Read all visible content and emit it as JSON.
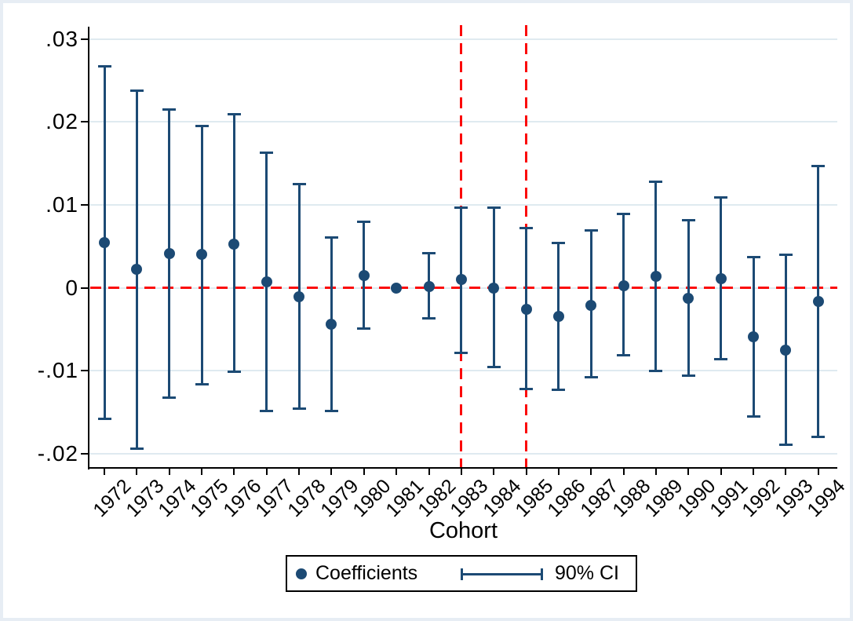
{
  "figure": {
    "xlabel": "Cohort",
    "background": "#ffffff",
    "frame_color": "#e7edf4"
  },
  "legend": {
    "position": "bottom-center",
    "items": [
      {
        "label": "Coefficients",
        "glyph": "dot"
      },
      {
        "label": "90% CI",
        "glyph": "errorbar"
      }
    ]
  },
  "chart_data": {
    "type": "scatter",
    "subtype": "coefficient-plot-with-confidence-intervals",
    "title": "",
    "xlabel": "Cohort",
    "ylabel": "",
    "grid": true,
    "legend_position": "bottom-center",
    "categories": [
      "1972",
      "1973",
      "1974",
      "1975",
      "1976",
      "1977",
      "1978",
      "1979",
      "1980",
      "1981",
      "1982",
      "1983",
      "1984",
      "1985",
      "1986",
      "1987",
      "1988",
      "1989",
      "1990",
      "1991",
      "1992",
      "1993",
      "1994"
    ],
    "y_ticks": [
      {
        "label": ".03",
        "value": 0.03
      },
      {
        "label": ".02",
        "value": 0.02
      },
      {
        "label": ".01",
        "value": 0.01
      },
      {
        "label": "0",
        "value": 0
      },
      {
        "label": "-.01",
        "value": -0.01
      },
      {
        "label": "-.02",
        "value": -0.02
      }
    ],
    "ylim": [
      -0.0217,
      0.0312
    ],
    "reference_year": "1981",
    "series": [
      {
        "name": "Coefficients",
        "type": "marker"
      },
      {
        "name": "90% CI",
        "type": "interval"
      }
    ],
    "points": [
      {
        "year": "1972",
        "coef": 0.0055,
        "lo": -0.0158,
        "hi": 0.0267,
        "has_ci": true
      },
      {
        "year": "1973",
        "coef": 0.0022,
        "lo": -0.0194,
        "hi": 0.0238,
        "has_ci": true
      },
      {
        "year": "1974",
        "coef": 0.0041,
        "lo": -0.0132,
        "hi": 0.0215,
        "has_ci": true
      },
      {
        "year": "1975",
        "coef": 0.004,
        "lo": -0.0116,
        "hi": 0.0195,
        "has_ci": true
      },
      {
        "year": "1976",
        "coef": 0.0053,
        "lo": -0.0101,
        "hi": 0.0209,
        "has_ci": true
      },
      {
        "year": "1977",
        "coef": 0.0007,
        "lo": -0.0148,
        "hi": 0.0163,
        "has_ci": true
      },
      {
        "year": "1978",
        "coef": -0.0011,
        "lo": -0.0146,
        "hi": 0.0125,
        "has_ci": true
      },
      {
        "year": "1979",
        "coef": -0.0044,
        "lo": -0.0148,
        "hi": 0.0061,
        "has_ci": true
      },
      {
        "year": "1980",
        "coef": 0.0015,
        "lo": -0.0049,
        "hi": 0.008,
        "has_ci": true
      },
      {
        "year": "1981",
        "coef": 0.0,
        "lo": 0.0,
        "hi": 0.0,
        "has_ci": false
      },
      {
        "year": "1982",
        "coef": 0.0002,
        "lo": -0.0037,
        "hi": 0.0042,
        "has_ci": true
      },
      {
        "year": "1983",
        "coef": 0.001,
        "lo": -0.0078,
        "hi": 0.0097,
        "has_ci": true
      },
      {
        "year": "1984",
        "coef": 0.0,
        "lo": -0.0095,
        "hi": 0.0097,
        "has_ci": true
      },
      {
        "year": "1985",
        "coef": -0.0026,
        "lo": -0.0122,
        "hi": 0.0072,
        "has_ci": true
      },
      {
        "year": "1986",
        "coef": -0.0034,
        "lo": -0.0123,
        "hi": 0.0054,
        "has_ci": true
      },
      {
        "year": "1987",
        "coef": -0.0021,
        "lo": -0.0108,
        "hi": 0.0069,
        "has_ci": true
      },
      {
        "year": "1988",
        "coef": 0.0003,
        "lo": -0.0081,
        "hi": 0.0089,
        "has_ci": true
      },
      {
        "year": "1989",
        "coef": 0.0014,
        "lo": -0.01,
        "hi": 0.0128,
        "has_ci": true
      },
      {
        "year": "1990",
        "coef": -0.0013,
        "lo": -0.0106,
        "hi": 0.0082,
        "has_ci": true
      },
      {
        "year": "1991",
        "coef": 0.0011,
        "lo": -0.0086,
        "hi": 0.0109,
        "has_ci": true
      },
      {
        "year": "1992",
        "coef": -0.0059,
        "lo": -0.0155,
        "hi": 0.0037,
        "has_ci": true
      },
      {
        "year": "1993",
        "coef": -0.0075,
        "lo": -0.0189,
        "hi": 0.004,
        "has_ci": true
      },
      {
        "year": "1994",
        "coef": -0.0016,
        "lo": -0.018,
        "hi": 0.0147,
        "has_ci": true
      }
    ],
    "reference_lines": {
      "horizontal_y": 0,
      "vertical_x": [
        "1983",
        "1985"
      ],
      "color": "#fb0a0a",
      "style": "dashed"
    },
    "colors": {
      "marker": "#1c4a74",
      "ci": "#1c4a74",
      "grid": "#dfeaf0",
      "axis": "#000000"
    }
  }
}
